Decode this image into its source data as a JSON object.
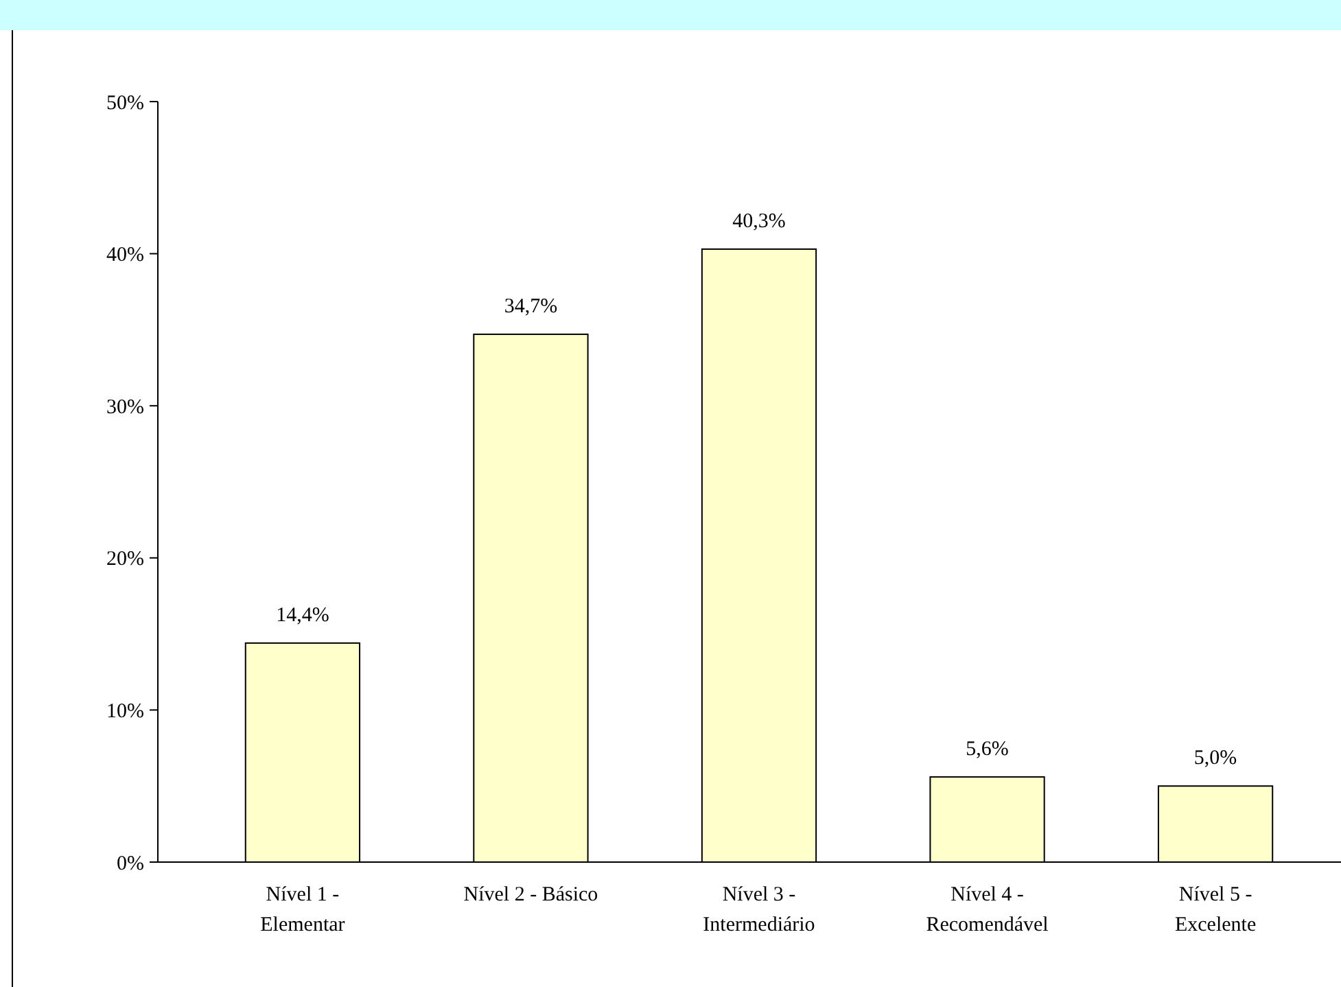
{
  "chart_data": {
    "type": "bar",
    "categories": [
      "Nível 1 - Elementar",
      "Nível 2 - Básico",
      "Nível 3 - Intermediário",
      "Nível 4 - Recomendável",
      "Nível 5 - Excelente"
    ],
    "values": [
      14.4,
      34.7,
      40.3,
      5.6,
      5.0
    ],
    "value_labels": [
      "14,4%",
      "34,7%",
      "40,3%",
      "5,6%",
      "5,0%"
    ],
    "color": "#ffffcc",
    "ylim": [
      0,
      50
    ],
    "yticks": [
      {
        "value": 0,
        "label": "0%"
      },
      {
        "value": 10,
        "label": "10%"
      },
      {
        "value": 20,
        "label": "20%"
      },
      {
        "value": 30,
        "label": "30%"
      },
      {
        "value": 40,
        "label": "40%"
      },
      {
        "value": 50,
        "label": "50%"
      }
    ],
    "grid": false
  }
}
